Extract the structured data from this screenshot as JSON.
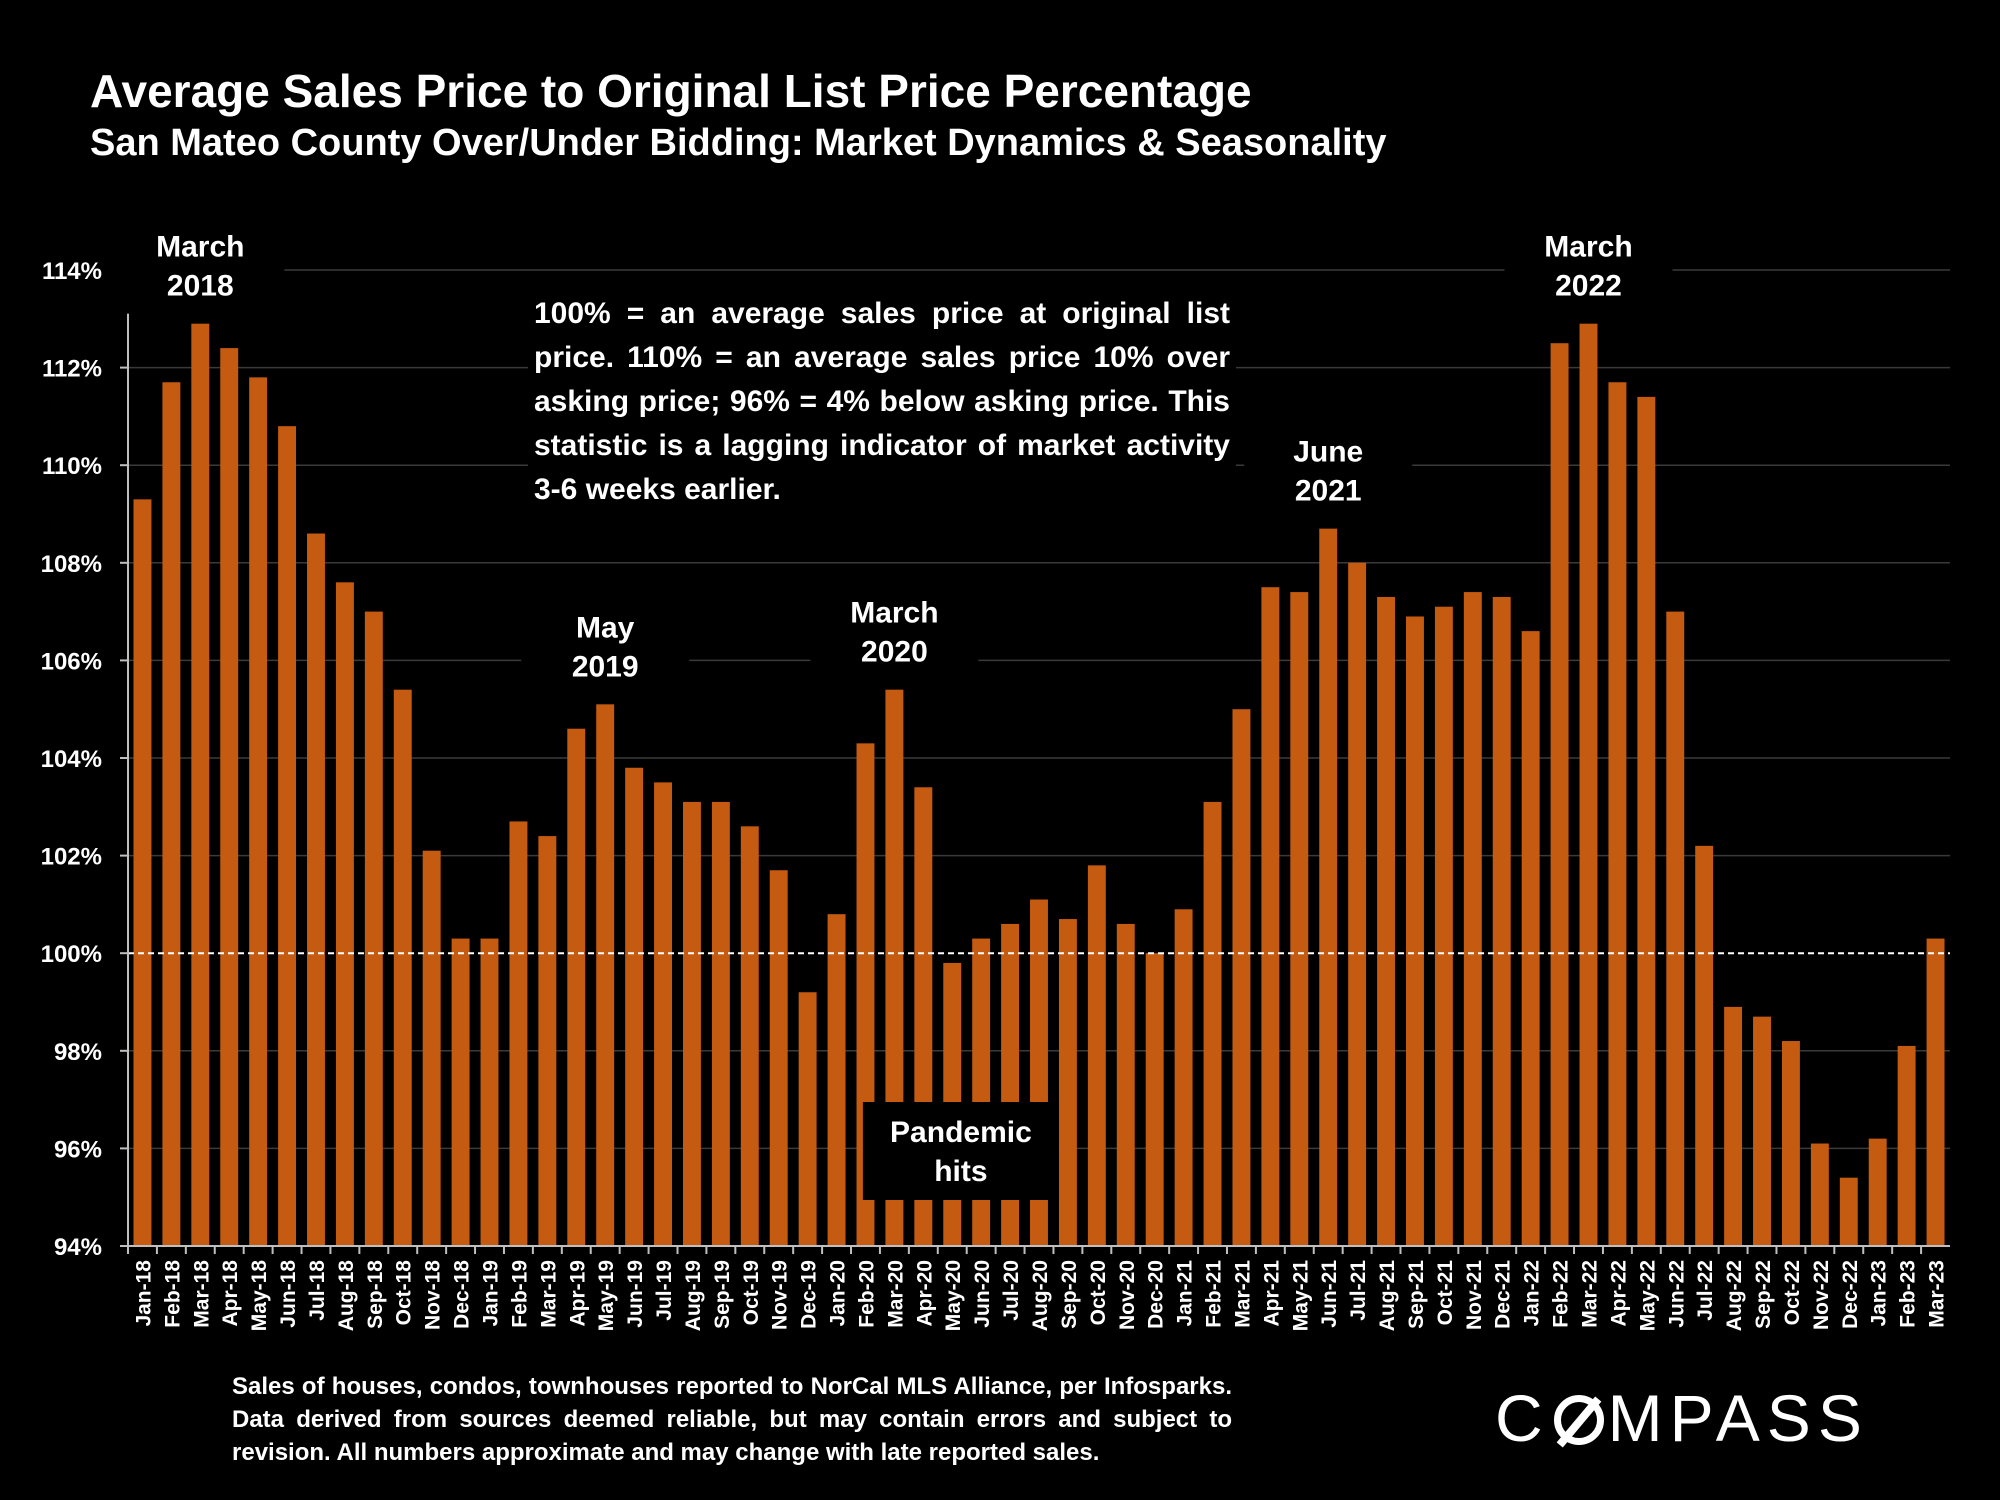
{
  "header": {
    "title": "Average Sales Price to Original List Price Percentage",
    "subtitle": "San Mateo County Over/Under Bidding: Market Dynamics & Seasonality"
  },
  "note": "100% = an average sales price at original list price. 110% = an average sales price 10% over asking price; 96% = 4% below asking price. This statistic is a lagging indicator of market activity 3-6 weeks earlier.",
  "footer": "Sales of houses, condos, townhouses reported to NorCal MLS Alliance, per Infosparks. Data derived from sources deemed reliable, but may contain errors and subject to revision. All numbers approximate and may change with late reported sales.",
  "logo": {
    "pre": "C",
    "post": "MPASS"
  },
  "colors": {
    "bar": "#C55A11",
    "background": "#000000",
    "grid": "#3a3a3a",
    "text": "#FFFFFF"
  },
  "chart_data": {
    "type": "bar",
    "title": "Average Sales Price to Original List Price Percentage",
    "subtitle": "San Mateo County Over/Under Bidding: Market Dynamics & Seasonality",
    "xlabel": "",
    "ylabel": "",
    "ylim": [
      94,
      114
    ],
    "yticks": [
      94,
      96,
      98,
      100,
      102,
      104,
      106,
      108,
      110,
      112,
      114
    ],
    "ytick_labels": [
      "94%",
      "96%",
      "98%",
      "100%",
      "102%",
      "104%",
      "106%",
      "108%",
      "110%",
      "112%",
      "114%"
    ],
    "reference_line": 100,
    "grid": true,
    "categories": [
      "Jan-18",
      "Feb-18",
      "Mar-18",
      "Apr-18",
      "May-18",
      "Jun-18",
      "Jul-18",
      "Aug-18",
      "Sep-18",
      "Oct-18",
      "Nov-18",
      "Dec-18",
      "Jan-19",
      "Feb-19",
      "Mar-19",
      "Apr-19",
      "May-19",
      "Jun-19",
      "Jul-19",
      "Aug-19",
      "Sep-19",
      "Oct-19",
      "Nov-19",
      "Dec-19",
      "Jan-20",
      "Feb-20",
      "Mar-20",
      "Apr-20",
      "May-20",
      "Jun-20",
      "Jul-20",
      "Aug-20",
      "Sep-20",
      "Oct-20",
      "Nov-20",
      "Dec-20",
      "Jan-21",
      "Feb-21",
      "Mar-21",
      "Apr-21",
      "May-21",
      "Jun-21",
      "Jul-21",
      "Aug-21",
      "Sep-21",
      "Oct-21",
      "Nov-21",
      "Dec-21",
      "Jan-22",
      "Feb-22",
      "Mar-22",
      "Apr-22",
      "May-22",
      "Jun-22",
      "Jul-22",
      "Aug-22",
      "Sep-22",
      "Oct-22",
      "Nov-22",
      "Dec-22",
      "Jan-23",
      "Feb-23",
      "Mar-23"
    ],
    "values": [
      109.3,
      111.7,
      112.9,
      112.4,
      111.8,
      110.8,
      108.6,
      107.6,
      107.0,
      105.4,
      102.1,
      100.3,
      100.3,
      102.7,
      102.4,
      104.6,
      105.1,
      103.8,
      103.5,
      103.1,
      103.1,
      102.6,
      101.7,
      99.2,
      100.8,
      104.3,
      105.4,
      103.4,
      99.8,
      100.3,
      100.6,
      101.1,
      100.7,
      101.8,
      100.6,
      100.0,
      100.9,
      103.1,
      105.0,
      107.5,
      107.4,
      108.7,
      108.0,
      107.3,
      106.9,
      107.1,
      107.4,
      107.3,
      106.6,
      112.5,
      112.9,
      111.7,
      111.4,
      107.0,
      102.2,
      98.9,
      98.7,
      98.2,
      96.1,
      95.4,
      96.2,
      98.1,
      100.3
    ],
    "annotations": [
      {
        "text": "March 2018",
        "lines": [
          "March",
          "2018"
        ],
        "category": "Mar-18"
      },
      {
        "text": "May 2019",
        "lines": [
          "May",
          "2019"
        ],
        "category": "May-19"
      },
      {
        "text": "March 2020",
        "lines": [
          "March",
          "2020"
        ],
        "category": "Mar-20"
      },
      {
        "text": "June 2021",
        "lines": [
          "June",
          "2021"
        ],
        "category": "Jun-21"
      },
      {
        "text": "March 2022",
        "lines": [
          "March",
          "2022"
        ],
        "category": "Mar-22"
      },
      {
        "text": "Pandemic hits",
        "lines": [
          "Pandemic",
          "hits"
        ],
        "category": "Apr-20",
        "boxed": true
      }
    ]
  }
}
